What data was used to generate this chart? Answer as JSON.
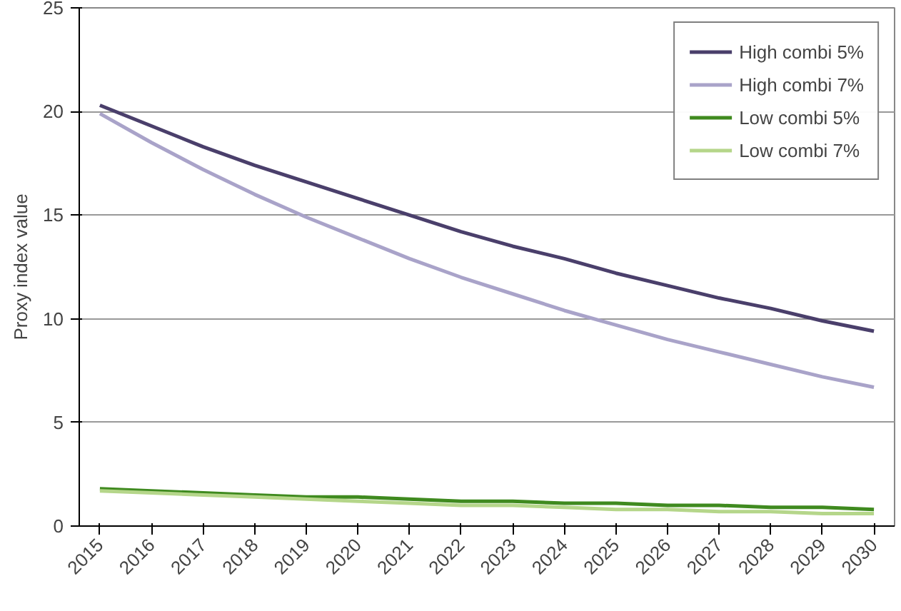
{
  "chart_data": {
    "type": "line",
    "ylabel": "Proxy index value",
    "categories": [
      "2015",
      "2016",
      "2017",
      "2018",
      "2019",
      "2020",
      "2021",
      "2022",
      "2023",
      "2024",
      "2025",
      "2026",
      "2027",
      "2028",
      "2029",
      "2030"
    ],
    "series": [
      {
        "name": "High combi 5%",
        "color": "#4a3f6b",
        "values": [
          20.3,
          19.3,
          18.3,
          17.4,
          16.6,
          15.8,
          15.0,
          14.2,
          13.5,
          12.9,
          12.2,
          11.6,
          11.0,
          10.5,
          9.9,
          9.4
        ]
      },
      {
        "name": "High combi 7%",
        "color": "#a9a3c9",
        "values": [
          19.9,
          18.5,
          17.2,
          16.0,
          14.9,
          13.9,
          12.9,
          12.0,
          11.2,
          10.4,
          9.7,
          9.0,
          8.4,
          7.8,
          7.2,
          6.7
        ]
      },
      {
        "name": "Low combi 5%",
        "color": "#3f8a1f",
        "values": [
          1.8,
          1.7,
          1.6,
          1.5,
          1.4,
          1.4,
          1.3,
          1.2,
          1.2,
          1.1,
          1.1,
          1.0,
          1.0,
          0.9,
          0.9,
          0.8
        ]
      },
      {
        "name": "Low combi 7%",
        "color": "#b5d68a",
        "values": [
          1.7,
          1.6,
          1.5,
          1.4,
          1.3,
          1.2,
          1.1,
          1.0,
          1.0,
          0.9,
          0.8,
          0.8,
          0.7,
          0.7,
          0.6,
          0.6
        ]
      }
    ],
    "ylim": [
      0,
      25
    ],
    "yticks": [
      0,
      5,
      10,
      15,
      20,
      25
    ],
    "grid": "y",
    "legend": "top right",
    "line_style": "solid",
    "marker": "none"
  }
}
